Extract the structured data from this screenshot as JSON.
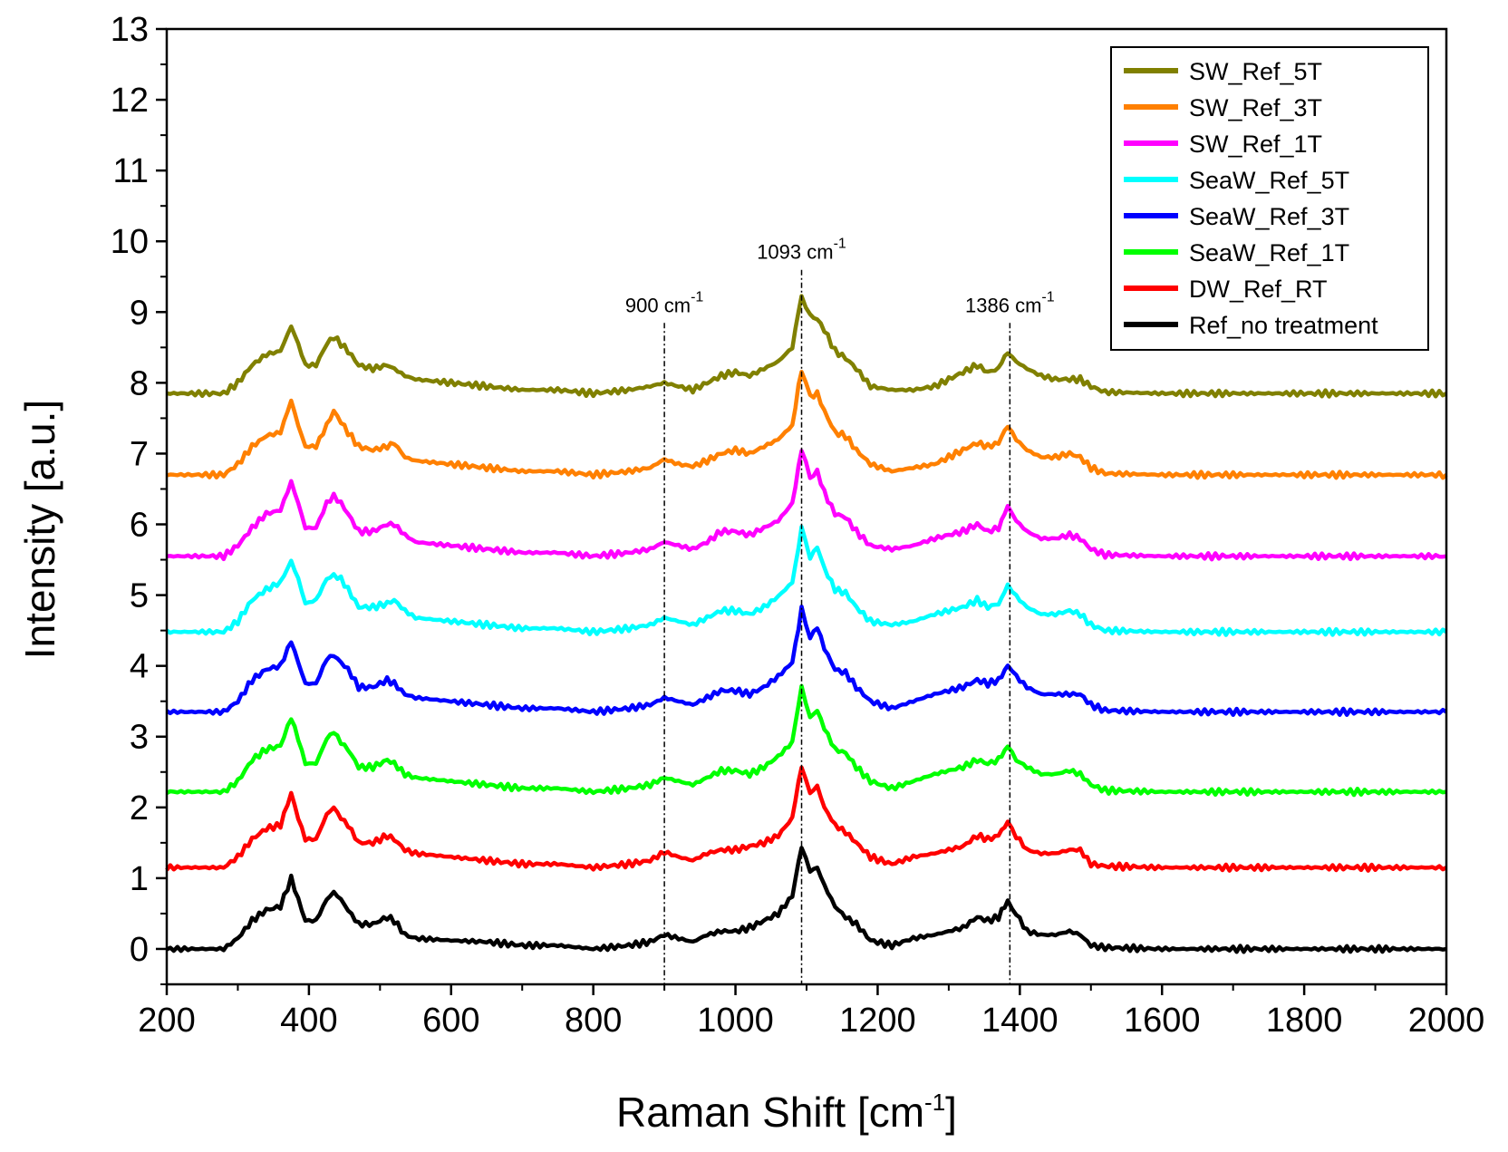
{
  "chart_data": {
    "type": "line",
    "title": "",
    "xlabel_main": "Raman Shift [cm",
    "xlabel_sup": "-1",
    "xlabel_end": "]",
    "ylabel": "Intensity [a.u.]",
    "xlim": [
      200,
      2000
    ],
    "ylim": [
      -0.5,
      13
    ],
    "x_ticks": [
      200,
      400,
      600,
      800,
      1000,
      1200,
      1400,
      1600,
      1800,
      2000
    ],
    "y_ticks": [
      0,
      1,
      2,
      3,
      4,
      5,
      6,
      7,
      8,
      9,
      10,
      11,
      12,
      13
    ],
    "legend_position": "top-right",
    "annotations": [
      {
        "x": 900,
        "label": "900 cm",
        "sup": "-1",
        "label_y": 9.0
      },
      {
        "x": 1093,
        "label": "1093 cm",
        "sup": "-1",
        "label_y": 9.75
      },
      {
        "x": 1386,
        "label": "1386 cm",
        "sup": "-1",
        "label_y": 9.0
      }
    ],
    "x": [
      200,
      220,
      240,
      260,
      280,
      300,
      320,
      340,
      360,
      375,
      385,
      395,
      410,
      425,
      435,
      445,
      455,
      470,
      490,
      510,
      520,
      535,
      550,
      600,
      650,
      700,
      750,
      800,
      850,
      880,
      900,
      920,
      940,
      960,
      980,
      1000,
      1020,
      1040,
      1060,
      1080,
      1093,
      1105,
      1115,
      1125,
      1140,
      1155,
      1170,
      1190,
      1220,
      1250,
      1280,
      1300,
      1320,
      1340,
      1355,
      1370,
      1383,
      1395,
      1410,
      1430,
      1450,
      1470,
      1485,
      1500,
      1520,
      1600,
      1700,
      1800,
      1900,
      2000
    ],
    "series": [
      {
        "name": "SW_Ref_5T",
        "color": "#808000",
        "offset": 7.85,
        "values": [
          0,
          0,
          0,
          0,
          0,
          0.15,
          0.4,
          0.55,
          0.6,
          0.95,
          0.7,
          0.4,
          0.4,
          0.7,
          0.8,
          0.7,
          0.6,
          0.4,
          0.35,
          0.4,
          0.35,
          0.25,
          0.2,
          0.15,
          0.1,
          0.05,
          0.05,
          0,
          0.05,
          0.1,
          0.15,
          0.1,
          0.05,
          0.15,
          0.25,
          0.3,
          0.25,
          0.35,
          0.45,
          0.65,
          1.4,
          1.1,
          1.05,
          0.9,
          0.6,
          0.5,
          0.35,
          0.1,
          0.05,
          0.05,
          0.1,
          0.2,
          0.3,
          0.4,
          0.3,
          0.35,
          0.6,
          0.45,
          0.35,
          0.25,
          0.2,
          0.2,
          0.2,
          0.1,
          0.02,
          0,
          0,
          0,
          0,
          0
        ]
      },
      {
        "name": "SW_Ref_3T",
        "color": "#ff8000",
        "offset": 6.7,
        "values": [
          0,
          0,
          0,
          0,
          0,
          0.15,
          0.4,
          0.55,
          0.6,
          1.05,
          0.7,
          0.4,
          0.4,
          0.7,
          0.9,
          0.75,
          0.6,
          0.4,
          0.35,
          0.4,
          0.45,
          0.25,
          0.2,
          0.15,
          0.1,
          0.05,
          0.05,
          0,
          0.05,
          0.1,
          0.22,
          0.15,
          0.12,
          0.2,
          0.3,
          0.35,
          0.3,
          0.4,
          0.5,
          0.7,
          1.5,
          1.1,
          1.15,
          0.9,
          0.6,
          0.55,
          0.35,
          0.15,
          0.05,
          0.1,
          0.15,
          0.25,
          0.35,
          0.45,
          0.4,
          0.45,
          0.7,
          0.5,
          0.35,
          0.25,
          0.25,
          0.3,
          0.25,
          0.1,
          0.02,
          0,
          0,
          0,
          0,
          0
        ]
      },
      {
        "name": "SW_Ref_1T",
        "color": "#ff00ff",
        "offset": 5.55,
        "values": [
          0,
          0,
          0,
          0,
          0,
          0.15,
          0.4,
          0.6,
          0.65,
          1.05,
          0.75,
          0.4,
          0.4,
          0.75,
          0.85,
          0.75,
          0.6,
          0.35,
          0.35,
          0.45,
          0.45,
          0.3,
          0.2,
          0.15,
          0.1,
          0.05,
          0.05,
          0,
          0.05,
          0.1,
          0.2,
          0.15,
          0.1,
          0.2,
          0.35,
          0.35,
          0.3,
          0.4,
          0.5,
          0.75,
          1.5,
          1.1,
          1.2,
          0.9,
          0.6,
          0.55,
          0.35,
          0.15,
          0.1,
          0.15,
          0.25,
          0.3,
          0.35,
          0.45,
          0.35,
          0.4,
          0.7,
          0.5,
          0.35,
          0.25,
          0.25,
          0.3,
          0.25,
          0.1,
          0.02,
          0,
          0,
          0,
          0,
          0
        ]
      },
      {
        "name": "SeaW_Ref_5T",
        "color": "#00ffff",
        "offset": 4.48,
        "values": [
          0,
          0,
          0,
          0,
          0,
          0.15,
          0.45,
          0.6,
          0.7,
          1.0,
          0.75,
          0.4,
          0.45,
          0.75,
          0.8,
          0.75,
          0.6,
          0.35,
          0.35,
          0.4,
          0.45,
          0.3,
          0.2,
          0.15,
          0.1,
          0.05,
          0.05,
          0,
          0.05,
          0.1,
          0.2,
          0.15,
          0.1,
          0.2,
          0.3,
          0.3,
          0.25,
          0.35,
          0.5,
          0.7,
          1.45,
          1.05,
          1.2,
          0.9,
          0.6,
          0.55,
          0.35,
          0.15,
          0.1,
          0.15,
          0.25,
          0.3,
          0.35,
          0.45,
          0.35,
          0.4,
          0.65,
          0.5,
          0.35,
          0.25,
          0.25,
          0.3,
          0.25,
          0.1,
          0.02,
          0,
          0,
          0,
          0,
          0
        ]
      },
      {
        "name": "SeaW_Ref_3T",
        "color": "#0000ff",
        "offset": 3.35,
        "values": [
          0,
          0,
          0,
          0,
          0,
          0.15,
          0.45,
          0.6,
          0.65,
          1.0,
          0.7,
          0.4,
          0.4,
          0.75,
          0.8,
          0.7,
          0.6,
          0.35,
          0.35,
          0.45,
          0.4,
          0.25,
          0.2,
          0.15,
          0.1,
          0.05,
          0.05,
          0,
          0.05,
          0.1,
          0.2,
          0.15,
          0.1,
          0.2,
          0.3,
          0.3,
          0.25,
          0.35,
          0.5,
          0.7,
          1.45,
          1.05,
          1.2,
          0.9,
          0.6,
          0.55,
          0.35,
          0.15,
          0.05,
          0.15,
          0.25,
          0.3,
          0.35,
          0.45,
          0.4,
          0.45,
          0.65,
          0.5,
          0.35,
          0.25,
          0.25,
          0.25,
          0.25,
          0.1,
          0.02,
          0,
          0,
          0,
          0,
          0
        ]
      },
      {
        "name": "SeaW_Ref_1T",
        "color": "#00ff00",
        "offset": 2.22,
        "values": [
          0,
          0,
          0,
          0,
          0,
          0.15,
          0.45,
          0.6,
          0.65,
          1.05,
          0.75,
          0.4,
          0.4,
          0.75,
          0.85,
          0.7,
          0.6,
          0.35,
          0.35,
          0.45,
          0.4,
          0.25,
          0.2,
          0.15,
          0.1,
          0.05,
          0.05,
          0,
          0.05,
          0.1,
          0.2,
          0.15,
          0.1,
          0.2,
          0.3,
          0.3,
          0.25,
          0.35,
          0.5,
          0.7,
          1.5,
          1.05,
          1.15,
          0.9,
          0.6,
          0.55,
          0.35,
          0.15,
          0.05,
          0.15,
          0.25,
          0.3,
          0.35,
          0.45,
          0.4,
          0.45,
          0.65,
          0.45,
          0.35,
          0.25,
          0.25,
          0.3,
          0.25,
          0.1,
          0.02,
          0,
          0,
          0,
          0,
          0
        ]
      },
      {
        "name": "DW_Ref_RT",
        "color": "#ff0000",
        "offset": 1.15,
        "values": [
          0,
          0,
          0,
          0,
          0,
          0.15,
          0.4,
          0.55,
          0.6,
          1.05,
          0.7,
          0.4,
          0.4,
          0.75,
          0.85,
          0.7,
          0.6,
          0.35,
          0.35,
          0.45,
          0.4,
          0.25,
          0.2,
          0.15,
          0.1,
          0.05,
          0.05,
          0,
          0.05,
          0.1,
          0.22,
          0.15,
          0.1,
          0.2,
          0.25,
          0.25,
          0.3,
          0.35,
          0.45,
          0.7,
          1.45,
          1.05,
          1.15,
          0.85,
          0.6,
          0.5,
          0.35,
          0.15,
          0.05,
          0.15,
          0.2,
          0.25,
          0.3,
          0.45,
          0.4,
          0.45,
          0.65,
          0.45,
          0.25,
          0.2,
          0.2,
          0.25,
          0.25,
          0.05,
          0.02,
          0,
          0,
          0,
          0,
          0
        ]
      },
      {
        "name": "Ref_no treatment",
        "color": "#000000",
        "offset": 0.0,
        "values": [
          0,
          0,
          0,
          0,
          0,
          0.15,
          0.4,
          0.55,
          0.6,
          1.0,
          0.7,
          0.4,
          0.4,
          0.7,
          0.8,
          0.7,
          0.55,
          0.35,
          0.35,
          0.45,
          0.4,
          0.2,
          0.15,
          0.12,
          0.1,
          0.05,
          0.05,
          0,
          0.05,
          0.1,
          0.2,
          0.15,
          0.1,
          0.2,
          0.25,
          0.25,
          0.3,
          0.4,
          0.5,
          0.75,
          1.45,
          1.1,
          1.15,
          0.9,
          0.6,
          0.45,
          0.35,
          0.12,
          0.05,
          0.15,
          0.2,
          0.25,
          0.3,
          0.45,
          0.4,
          0.45,
          0.68,
          0.5,
          0.25,
          0.2,
          0.2,
          0.25,
          0.2,
          0.05,
          0.02,
          0,
          0,
          0,
          0,
          0
        ]
      }
    ]
  }
}
